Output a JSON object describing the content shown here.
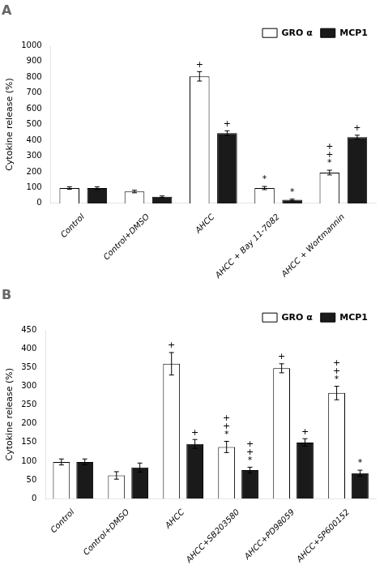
{
  "chart_data": [
    {
      "type": "bar",
      "title": "A",
      "categories": [
        "Control",
        "Control+DMSO",
        "AHCC",
        "AHCC + Bay 11-7082",
        "AHCC + Wortmannin"
      ],
      "series": [
        {
          "name": "GRO α",
          "color": "white",
          "values": [
            97,
            75,
            805,
            97,
            195
          ],
          "errors": [
            8,
            8,
            30,
            10,
            15
          ],
          "annotations": [
            null,
            null,
            [
              "+"
            ],
            [
              "*"
            ],
            [
              "+",
              "+",
              "*"
            ]
          ]
        },
        {
          "name": "MCP1",
          "color": "#1a1a1a",
          "values": [
            97,
            42,
            445,
            22,
            420
          ],
          "errors": [
            8,
            5,
            15,
            5,
            12
          ],
          "annotations": [
            null,
            null,
            [
              "+"
            ],
            [
              "*"
            ],
            [
              "+"
            ]
          ]
        }
      ],
      "ylabel": "Cytokine release (%)",
      "ylim": [
        0,
        1000
      ],
      "yticks": [
        0,
        100,
        200,
        300,
        400,
        500,
        600,
        700,
        800,
        900,
        1000
      ],
      "legend": "upper right",
      "grid": false
    },
    {
      "type": "bar",
      "title": "B",
      "categories": [
        "Control",
        "Control+DMSO",
        "AHCC",
        "AHCC+SB203580",
        "AHCC+PD98059",
        "AHCC+SP600152"
      ],
      "series": [
        {
          "name": "GRO α",
          "color": "white",
          "values": [
            98,
            62,
            360,
            138,
            348,
            282
          ],
          "errors": [
            8,
            10,
            30,
            15,
            12,
            18
          ],
          "annotations": [
            null,
            null,
            [
              "+"
            ],
            [
              "+",
              "+",
              "*"
            ],
            [
              "+"
            ],
            [
              "+",
              "+",
              "*"
            ]
          ]
        },
        {
          "name": "MCP1",
          "color": "#1a1a1a",
          "values": [
            98,
            83,
            146,
            76,
            150,
            68
          ],
          "errors": [
            8,
            12,
            12,
            8,
            10,
            8
          ],
          "annotations": [
            null,
            null,
            [
              "+"
            ],
            [
              "+",
              "+",
              "*"
            ],
            [
              "+"
            ],
            [
              "*"
            ]
          ]
        }
      ],
      "ylabel": "Cytokine release (%)",
      "ylim": [
        0,
        450
      ],
      "yticks": [
        0,
        50,
        100,
        150,
        200,
        250,
        300,
        350,
        400,
        450
      ],
      "legend": "upper right",
      "grid": false
    }
  ]
}
